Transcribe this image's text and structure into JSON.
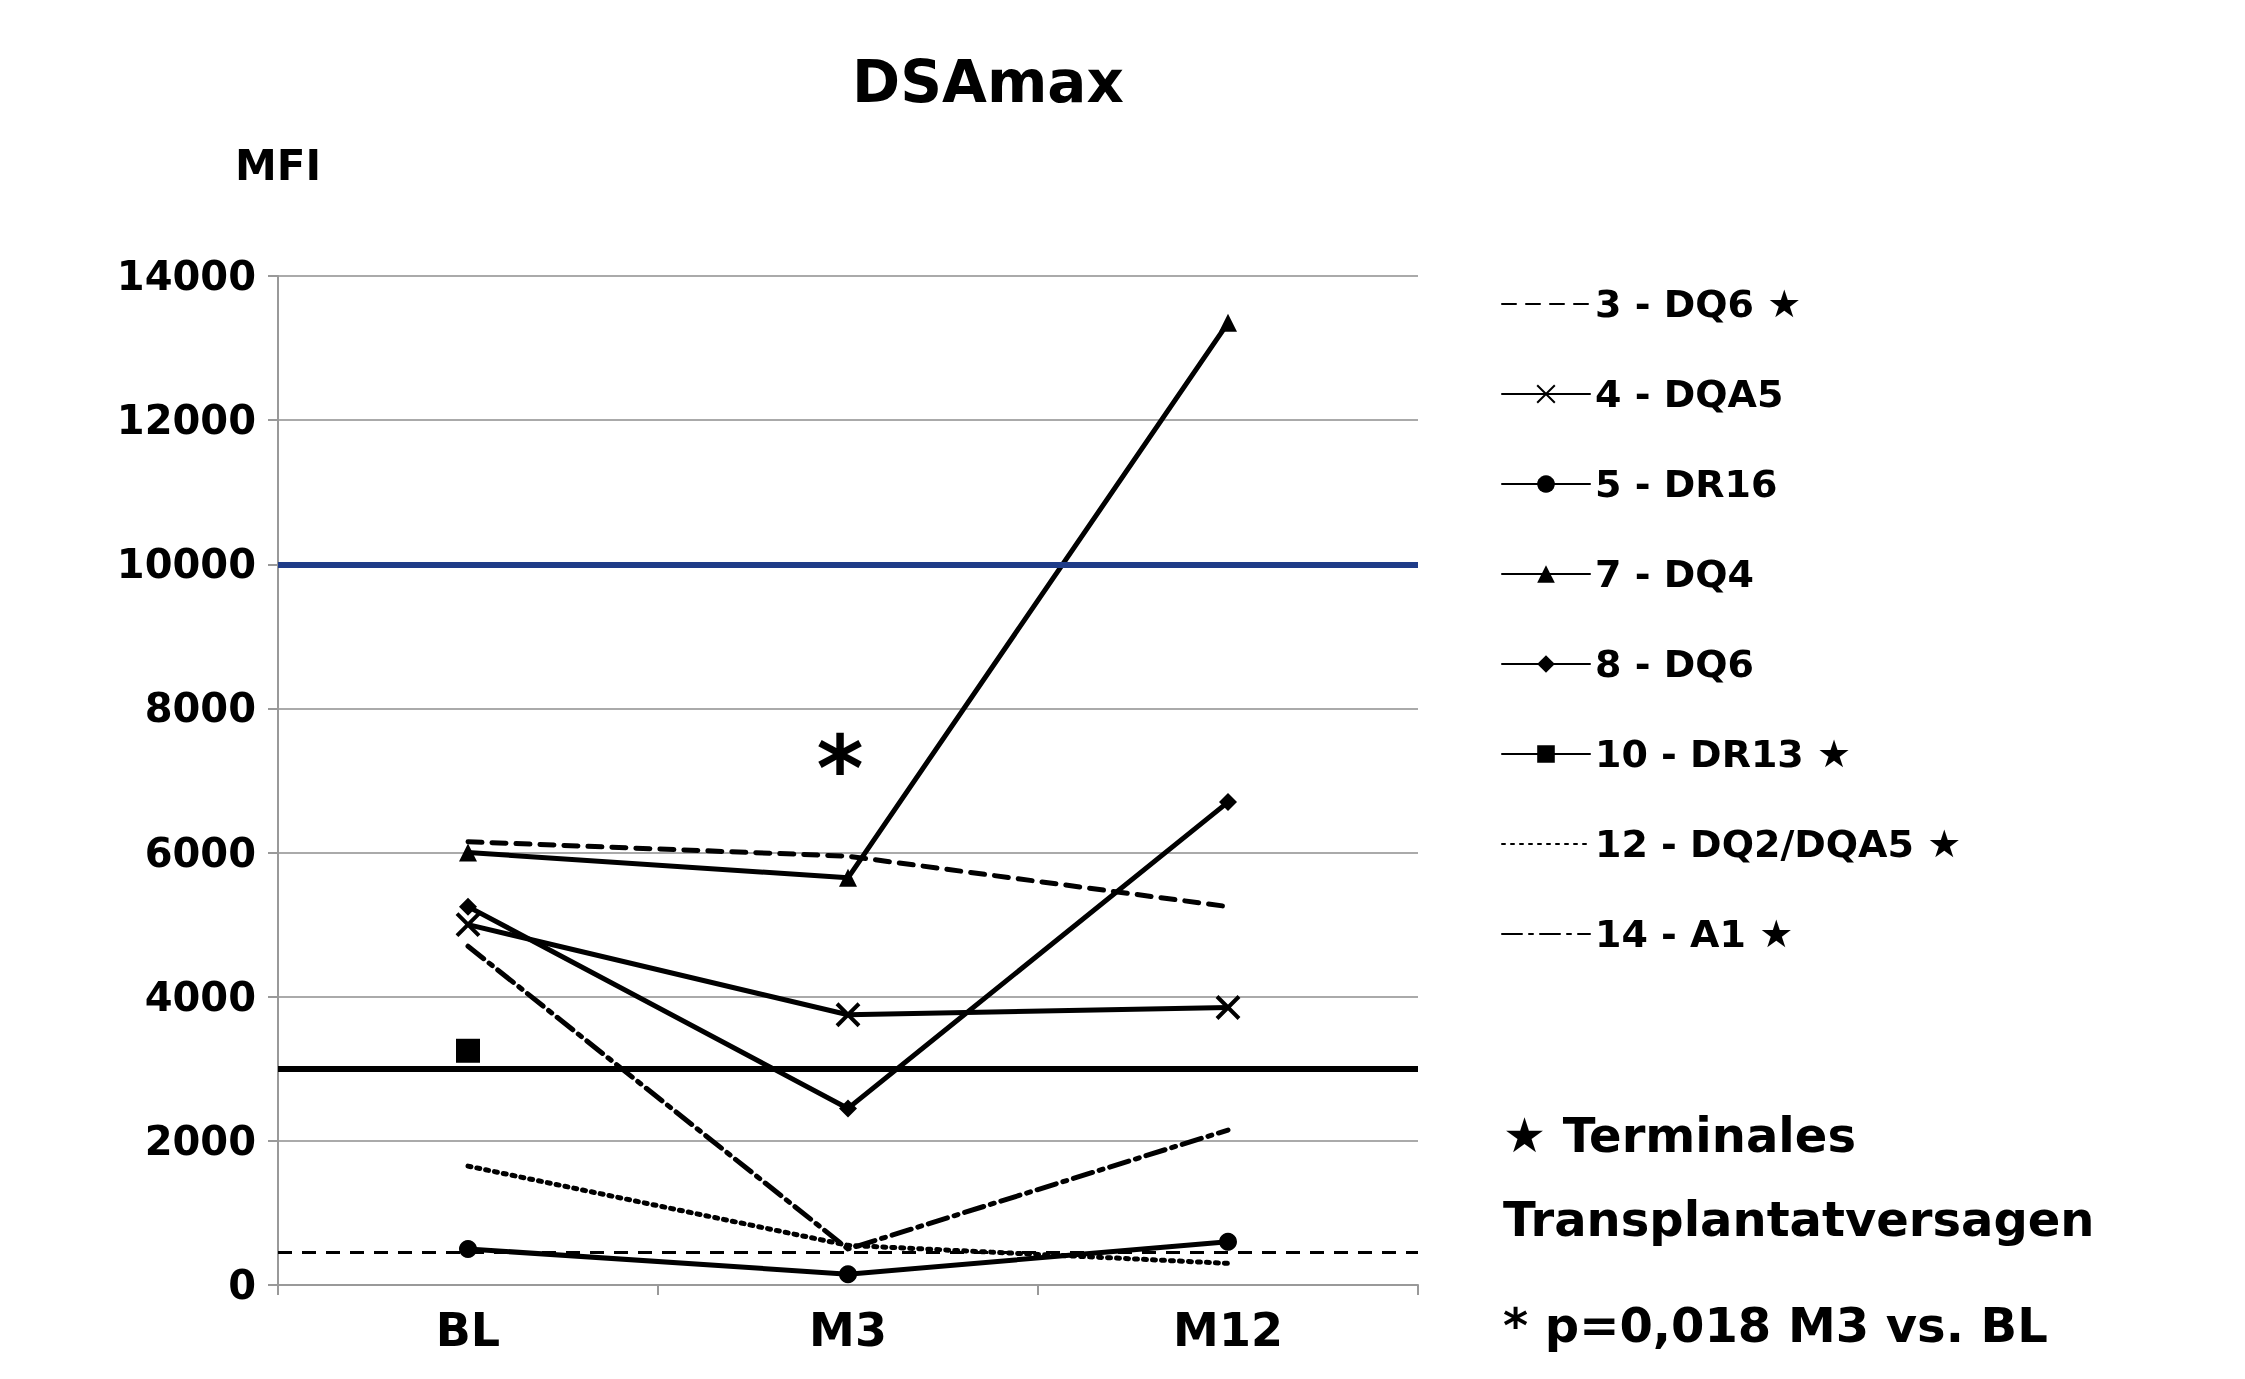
{
  "chart_data": {
    "type": "line",
    "title": "DSAmax",
    "ylabel": "MFI",
    "categories": [
      "BL",
      "M3",
      "M12"
    ],
    "series": [
      {
        "name": "3 - DQ6 ★",
        "color": "#000000",
        "line_style": "dashed",
        "marker": "none",
        "values": [
          6150,
          5950,
          5250
        ]
      },
      {
        "name": "4 - DQA5",
        "color": "#000000",
        "line_style": "solid",
        "marker": "cross",
        "values": [
          5000,
          3750,
          3850
        ]
      },
      {
        "name": "5 - DR16",
        "color": "#000000",
        "line_style": "solid",
        "marker": "circle",
        "values": [
          500,
          150,
          600
        ]
      },
      {
        "name": "7 - DQ4",
        "color": "#000000",
        "line_style": "solid",
        "marker": "triangle",
        "values": [
          6000,
          5650,
          13350
        ]
      },
      {
        "name": "8 - DQ6",
        "color": "#000000",
        "line_style": "solid",
        "marker": "diamond",
        "values": [
          5250,
          2450,
          6700
        ]
      },
      {
        "name": "10 - DR13 ★",
        "color": "#000000",
        "line_style": "solid",
        "marker": "square",
        "values": [
          3250,
          null,
          null
        ]
      },
      {
        "name": "12 - DQ2/DQA5 ★",
        "color": "#000000",
        "line_style": "dotted",
        "marker": "none",
        "values": [
          1650,
          550,
          300
        ]
      },
      {
        "name": "14 - A1 ★",
        "color": "#000000",
        "line_style": "dashdot",
        "marker": "none",
        "values": [
          4700,
          500,
          2150
        ]
      }
    ],
    "ylim": [
      0,
      14000
    ],
    "yticks": [
      0,
      2000,
      4000,
      6000,
      8000,
      10000,
      12000,
      14000
    ],
    "grid": "y",
    "legend": "right",
    "ref_lines": [
      {
        "axis": "y",
        "value": 10000,
        "color": "#1f3c88",
        "line_style": "solid"
      },
      {
        "axis": "y",
        "value": 3000,
        "color": "#000000",
        "line_style": "solid"
      },
      {
        "axis": "y",
        "value": 450,
        "color": "#000000",
        "line_style": "dashed"
      }
    ],
    "annotations": [
      "*",
      "★ Terminales Transplantatversagen",
      "* p=0,018 M3 vs. BL"
    ]
  }
}
